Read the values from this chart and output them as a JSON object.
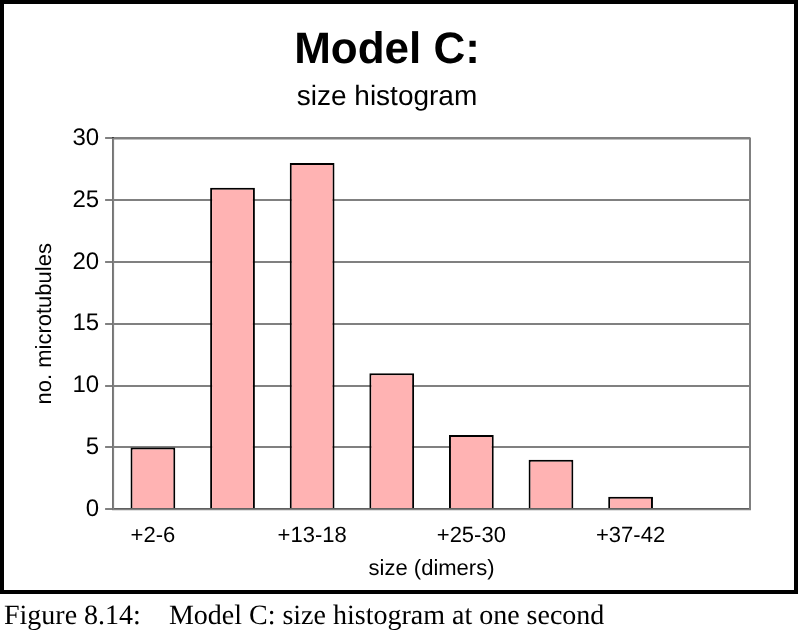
{
  "chart_data": {
    "type": "bar",
    "title": "Model C:",
    "subtitle": "size histogram",
    "xlabel": "size (dimers)",
    "ylabel": "no. microtubules",
    "categories": [
      "+2-6",
      null,
      "+13-18",
      null,
      "+25-30",
      null,
      "+37-42",
      null
    ],
    "values": [
      5,
      26,
      28,
      11,
      6,
      4,
      1,
      null
    ],
    "color": "#ffb3b3",
    "ylim": [
      0,
      30
    ],
    "yticks": [
      0,
      5,
      10,
      15,
      20,
      25,
      30
    ],
    "grid": "y",
    "legend": false,
    "annotations": [
      "Figure 8.14:    Model C: size histogram at one second"
    ]
  }
}
